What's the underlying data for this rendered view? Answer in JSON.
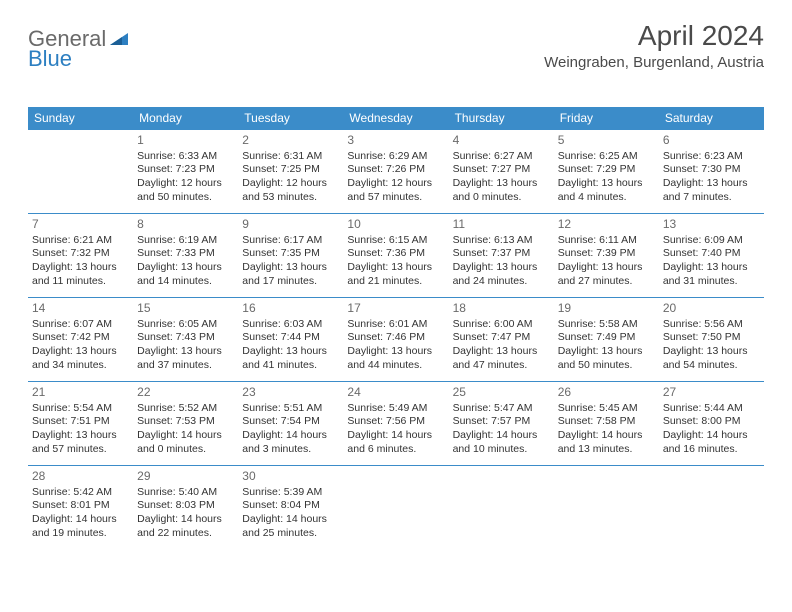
{
  "logo": {
    "general": "General",
    "blue": "Blue"
  },
  "title": "April 2024",
  "location": "Weingraben, Burgenland, Austria",
  "colors": {
    "header_bg": "#3b8cc9",
    "header_text": "#ffffff",
    "border": "#3b8cc9",
    "text": "#333333",
    "daynum": "#6a6a6a",
    "logo_general": "#6a6a6a",
    "logo_blue": "#2d7fc1"
  },
  "dayHeaders": [
    "Sunday",
    "Monday",
    "Tuesday",
    "Wednesday",
    "Thursday",
    "Friday",
    "Saturday"
  ],
  "weeks": [
    [
      null,
      {
        "n": "1",
        "sunrise": "Sunrise: 6:33 AM",
        "sunset": "Sunset: 7:23 PM",
        "day1": "Daylight: 12 hours",
        "day2": "and 50 minutes."
      },
      {
        "n": "2",
        "sunrise": "Sunrise: 6:31 AM",
        "sunset": "Sunset: 7:25 PM",
        "day1": "Daylight: 12 hours",
        "day2": "and 53 minutes."
      },
      {
        "n": "3",
        "sunrise": "Sunrise: 6:29 AM",
        "sunset": "Sunset: 7:26 PM",
        "day1": "Daylight: 12 hours",
        "day2": "and 57 minutes."
      },
      {
        "n": "4",
        "sunrise": "Sunrise: 6:27 AM",
        "sunset": "Sunset: 7:27 PM",
        "day1": "Daylight: 13 hours",
        "day2": "and 0 minutes."
      },
      {
        "n": "5",
        "sunrise": "Sunrise: 6:25 AM",
        "sunset": "Sunset: 7:29 PM",
        "day1": "Daylight: 13 hours",
        "day2": "and 4 minutes."
      },
      {
        "n": "6",
        "sunrise": "Sunrise: 6:23 AM",
        "sunset": "Sunset: 7:30 PM",
        "day1": "Daylight: 13 hours",
        "day2": "and 7 minutes."
      }
    ],
    [
      {
        "n": "7",
        "sunrise": "Sunrise: 6:21 AM",
        "sunset": "Sunset: 7:32 PM",
        "day1": "Daylight: 13 hours",
        "day2": "and 11 minutes."
      },
      {
        "n": "8",
        "sunrise": "Sunrise: 6:19 AM",
        "sunset": "Sunset: 7:33 PM",
        "day1": "Daylight: 13 hours",
        "day2": "and 14 minutes."
      },
      {
        "n": "9",
        "sunrise": "Sunrise: 6:17 AM",
        "sunset": "Sunset: 7:35 PM",
        "day1": "Daylight: 13 hours",
        "day2": "and 17 minutes."
      },
      {
        "n": "10",
        "sunrise": "Sunrise: 6:15 AM",
        "sunset": "Sunset: 7:36 PM",
        "day1": "Daylight: 13 hours",
        "day2": "and 21 minutes."
      },
      {
        "n": "11",
        "sunrise": "Sunrise: 6:13 AM",
        "sunset": "Sunset: 7:37 PM",
        "day1": "Daylight: 13 hours",
        "day2": "and 24 minutes."
      },
      {
        "n": "12",
        "sunrise": "Sunrise: 6:11 AM",
        "sunset": "Sunset: 7:39 PM",
        "day1": "Daylight: 13 hours",
        "day2": "and 27 minutes."
      },
      {
        "n": "13",
        "sunrise": "Sunrise: 6:09 AM",
        "sunset": "Sunset: 7:40 PM",
        "day1": "Daylight: 13 hours",
        "day2": "and 31 minutes."
      }
    ],
    [
      {
        "n": "14",
        "sunrise": "Sunrise: 6:07 AM",
        "sunset": "Sunset: 7:42 PM",
        "day1": "Daylight: 13 hours",
        "day2": "and 34 minutes."
      },
      {
        "n": "15",
        "sunrise": "Sunrise: 6:05 AM",
        "sunset": "Sunset: 7:43 PM",
        "day1": "Daylight: 13 hours",
        "day2": "and 37 minutes."
      },
      {
        "n": "16",
        "sunrise": "Sunrise: 6:03 AM",
        "sunset": "Sunset: 7:44 PM",
        "day1": "Daylight: 13 hours",
        "day2": "and 41 minutes."
      },
      {
        "n": "17",
        "sunrise": "Sunrise: 6:01 AM",
        "sunset": "Sunset: 7:46 PM",
        "day1": "Daylight: 13 hours",
        "day2": "and 44 minutes."
      },
      {
        "n": "18",
        "sunrise": "Sunrise: 6:00 AM",
        "sunset": "Sunset: 7:47 PM",
        "day1": "Daylight: 13 hours",
        "day2": "and 47 minutes."
      },
      {
        "n": "19",
        "sunrise": "Sunrise: 5:58 AM",
        "sunset": "Sunset: 7:49 PM",
        "day1": "Daylight: 13 hours",
        "day2": "and 50 minutes."
      },
      {
        "n": "20",
        "sunrise": "Sunrise: 5:56 AM",
        "sunset": "Sunset: 7:50 PM",
        "day1": "Daylight: 13 hours",
        "day2": "and 54 minutes."
      }
    ],
    [
      {
        "n": "21",
        "sunrise": "Sunrise: 5:54 AM",
        "sunset": "Sunset: 7:51 PM",
        "day1": "Daylight: 13 hours",
        "day2": "and 57 minutes."
      },
      {
        "n": "22",
        "sunrise": "Sunrise: 5:52 AM",
        "sunset": "Sunset: 7:53 PM",
        "day1": "Daylight: 14 hours",
        "day2": "and 0 minutes."
      },
      {
        "n": "23",
        "sunrise": "Sunrise: 5:51 AM",
        "sunset": "Sunset: 7:54 PM",
        "day1": "Daylight: 14 hours",
        "day2": "and 3 minutes."
      },
      {
        "n": "24",
        "sunrise": "Sunrise: 5:49 AM",
        "sunset": "Sunset: 7:56 PM",
        "day1": "Daylight: 14 hours",
        "day2": "and 6 minutes."
      },
      {
        "n": "25",
        "sunrise": "Sunrise: 5:47 AM",
        "sunset": "Sunset: 7:57 PM",
        "day1": "Daylight: 14 hours",
        "day2": "and 10 minutes."
      },
      {
        "n": "26",
        "sunrise": "Sunrise: 5:45 AM",
        "sunset": "Sunset: 7:58 PM",
        "day1": "Daylight: 14 hours",
        "day2": "and 13 minutes."
      },
      {
        "n": "27",
        "sunrise": "Sunrise: 5:44 AM",
        "sunset": "Sunset: 8:00 PM",
        "day1": "Daylight: 14 hours",
        "day2": "and 16 minutes."
      }
    ],
    [
      {
        "n": "28",
        "sunrise": "Sunrise: 5:42 AM",
        "sunset": "Sunset: 8:01 PM",
        "day1": "Daylight: 14 hours",
        "day2": "and 19 minutes."
      },
      {
        "n": "29",
        "sunrise": "Sunrise: 5:40 AM",
        "sunset": "Sunset: 8:03 PM",
        "day1": "Daylight: 14 hours",
        "day2": "and 22 minutes."
      },
      {
        "n": "30",
        "sunrise": "Sunrise: 5:39 AM",
        "sunset": "Sunset: 8:04 PM",
        "day1": "Daylight: 14 hours",
        "day2": "and 25 minutes."
      },
      null,
      null,
      null,
      null
    ]
  ]
}
